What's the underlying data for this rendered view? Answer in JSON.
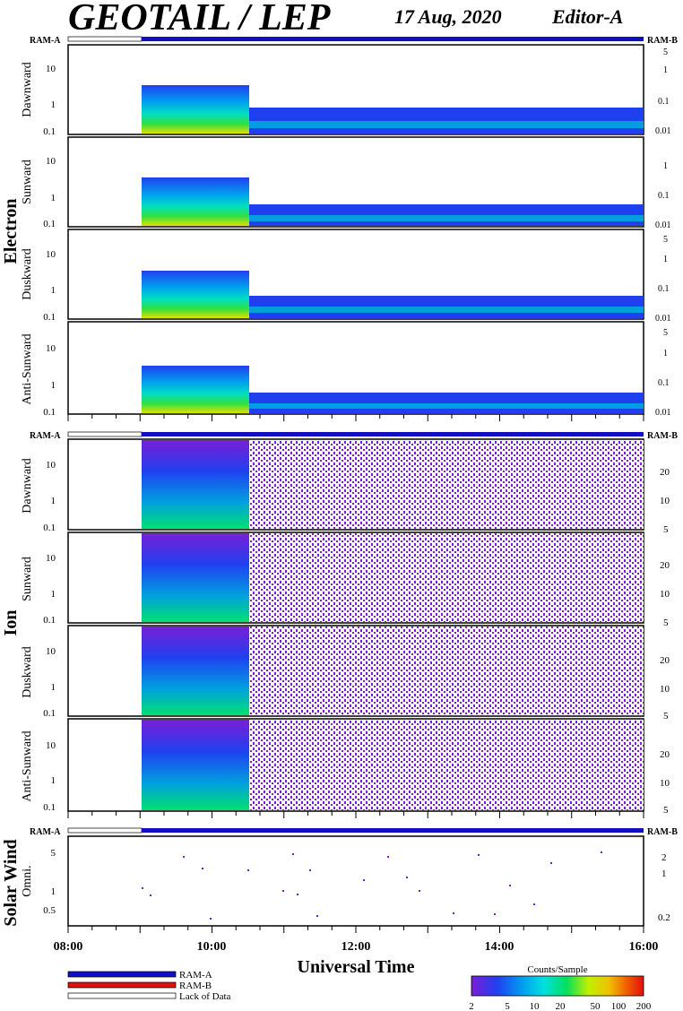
{
  "header": {
    "title": "GEOTAIL / LEP",
    "date": "17 Aug, 2020",
    "editor": "Editor-A"
  },
  "colors": {
    "ram_a": "#1010c0",
    "ram_b": "#e01010",
    "lack_of_data": "#ffffff",
    "colorbar": [
      "#7a1ed6",
      "#5a2ee6",
      "#2040f0",
      "#00a0f0",
      "#00e0e0",
      "#00e060",
      "#a0f000",
      "#f0f000",
      "#f0a000",
      "#f05000",
      "#e01010"
    ]
  },
  "ram_bar_labels": {
    "left": "RAM-A",
    "right": "RAM-B"
  },
  "groups": {
    "electron": "Electron",
    "ion": "Ion",
    "solar_wind": "Solar Wind"
  },
  "panels": {
    "e_dawnward": "Dawnward",
    "e_sunward": "Sunward",
    "e_duskward": "Duskward",
    "e_antisunward": "Anti-Sunward",
    "i_dawnward": "Dawnward",
    "i_sunward": "Sunward",
    "i_duskward": "Duskward",
    "i_antisunward": "Anti-Sunward",
    "sw_omni": "Omni."
  },
  "legend": {
    "ram_a": "RAM-A",
    "ram_b": "RAM-B",
    "lack": "Lack of Data",
    "colorbar_title": "Counts/Sample",
    "colorbar_ticks": [
      "2",
      "5",
      "10",
      "20",
      "50",
      "100",
      "200"
    ]
  },
  "chart_data": {
    "type": "heatmap",
    "xlabel": "Universal Time",
    "x_ticks": [
      "08:00",
      "10:00",
      "12:00",
      "14:00",
      "16:00"
    ],
    "x_range": [
      "08:00",
      "16:00"
    ],
    "data_start": "09:00",
    "electron_left_ticks": [
      "10",
      "1",
      "0.1"
    ],
    "electron_right_ticks": [
      "5",
      "1",
      "0.1",
      "0.01"
    ],
    "ion_left_ticks": [
      "10",
      "1",
      "0.1"
    ],
    "ion_right_ticks": [
      "20",
      "10",
      "5"
    ],
    "sw_left_ticks": [
      "5",
      "1",
      "0.5"
    ],
    "sw_right_ticks": [
      "2",
      "1",
      "0.2"
    ],
    "colorbar": {
      "title": "Counts/Sample",
      "scale": "log",
      "range": [
        2,
        200
      ]
    }
  }
}
